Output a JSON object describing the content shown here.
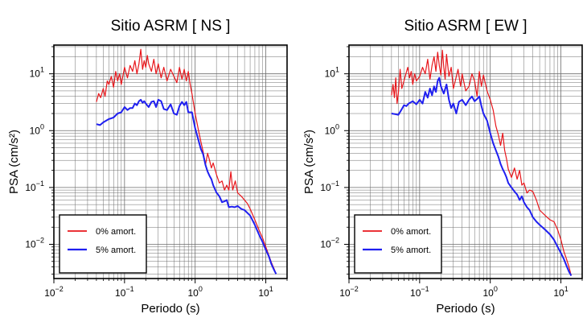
{
  "colors": {
    "undamped": "#e8161b",
    "damped": "#1f1ff0",
    "grid": "#6d6d6d",
    "frame": "#000000"
  },
  "chart_data": [
    {
      "type": "line",
      "title": "Sitio ASRM [ NS ]",
      "xlabel": "Periodo (s)",
      "ylabel": "PSA (cm/s²)",
      "xscale": "log",
      "yscale": "log",
      "xlim": [
        0.01,
        20
      ],
      "ylim": [
        0.0025,
        32
      ],
      "x_ticks": [
        {
          "v": 0.01,
          "base": "10",
          "exp": "−2"
        },
        {
          "v": 0.1,
          "base": "10",
          "exp": "−1"
        },
        {
          "v": 1,
          "base": "10",
          "exp": "0"
        },
        {
          "v": 10,
          "base": "10",
          "exp": "1"
        }
      ],
      "y_ticks": [
        {
          "v": 0.01,
          "base": "10",
          "exp": "−2"
        },
        {
          "v": 0.1,
          "base": "10",
          "exp": "−1"
        },
        {
          "v": 1,
          "base": "10",
          "exp": "0"
        },
        {
          "v": 10,
          "base": "10",
          "exp": "1"
        }
      ],
      "grid": true,
      "legend_position": "bottom-left",
      "series": [
        {
          "name": "0% amort.",
          "x": [
            0.04,
            0.043,
            0.046,
            0.05,
            0.053,
            0.057,
            0.06,
            0.065,
            0.07,
            0.075,
            0.08,
            0.085,
            0.09,
            0.1,
            0.11,
            0.12,
            0.13,
            0.14,
            0.15,
            0.16,
            0.17,
            0.18,
            0.19,
            0.2,
            0.21,
            0.22,
            0.24,
            0.26,
            0.28,
            0.3,
            0.33,
            0.36,
            0.4,
            0.45,
            0.5,
            0.55,
            0.6,
            0.65,
            0.7,
            0.75,
            0.8,
            0.85,
            0.9,
            1.0,
            1.1,
            1.2,
            1.3,
            1.4,
            1.5,
            1.6,
            1.7,
            1.8,
            2.0,
            2.2,
            2.4,
            2.6,
            2.8,
            3.0,
            3.2,
            3.4,
            3.7,
            4.0,
            4.5,
            5.0,
            5.5,
            6.0,
            7.0,
            8.0,
            9.0,
            10.0,
            11.0,
            12.0,
            13.0,
            14.0
          ],
          "y": [
            3.2,
            4.5,
            3.8,
            5.5,
            4.0,
            7.5,
            6.5,
            9.0,
            5.8,
            11,
            7.5,
            10,
            6.5,
            13,
            8.5,
            14,
            11,
            17,
            10,
            15,
            27,
            12,
            17,
            13,
            21,
            15,
            11,
            18,
            10,
            15,
            8.5,
            13,
            7.5,
            12,
            9.0,
            7.0,
            13,
            8.0,
            12,
            7.5,
            11,
            6.5,
            4.5,
            2.0,
            1.1,
            0.65,
            0.42,
            0.25,
            0.4,
            0.3,
            0.22,
            0.27,
            0.17,
            0.12,
            0.13,
            0.09,
            0.11,
            0.09,
            0.19,
            0.09,
            0.13,
            0.08,
            0.07,
            0.06,
            0.052,
            0.042,
            0.027,
            0.018,
            0.013,
            0.009,
            0.0065,
            0.0048,
            0.0038,
            0.003
          ]
        },
        {
          "name": "5% amort.",
          "x": [
            0.04,
            0.045,
            0.05,
            0.06,
            0.07,
            0.08,
            0.09,
            0.1,
            0.11,
            0.12,
            0.13,
            0.14,
            0.15,
            0.16,
            0.17,
            0.18,
            0.19,
            0.2,
            0.22,
            0.24,
            0.26,
            0.28,
            0.3,
            0.33,
            0.36,
            0.4,
            0.45,
            0.5,
            0.55,
            0.6,
            0.65,
            0.7,
            0.75,
            0.8,
            0.9,
            1.0,
            1.1,
            1.2,
            1.3,
            1.4,
            1.5,
            1.6,
            1.7,
            1.8,
            2.0,
            2.2,
            2.4,
            2.6,
            2.8,
            3.0,
            3.3,
            3.6,
            4.0,
            4.5,
            5.0,
            6.0,
            7.0,
            8.0,
            9.0,
            10.0,
            11.0,
            12.0,
            13.0,
            14.0
          ],
          "y": [
            1.3,
            1.25,
            1.4,
            1.6,
            1.7,
            2.0,
            2.1,
            2.6,
            2.3,
            2.5,
            2.5,
            3.0,
            2.8,
            3.3,
            3.5,
            3.1,
            3.3,
            3.0,
            2.6,
            3.2,
            3.3,
            2.6,
            3.5,
            3.3,
            2.4,
            2.3,
            2.9,
            2.0,
            1.9,
            2.7,
            3.2,
            2.8,
            3.2,
            2.1,
            2.1,
            1.1,
            0.72,
            0.48,
            0.38,
            0.25,
            0.19,
            0.16,
            0.14,
            0.11,
            0.082,
            0.07,
            0.055,
            0.057,
            0.06,
            0.045,
            0.046,
            0.045,
            0.047,
            0.042,
            0.04,
            0.032,
            0.022,
            0.015,
            0.011,
            0.008,
            0.0062,
            0.0045,
            0.0036,
            0.003
          ]
        }
      ]
    },
    {
      "type": "line",
      "title": "Sitio ASRM [ EW ]",
      "xlabel": "Periodo (s)",
      "ylabel": "PSA (cm/s²)",
      "xscale": "log",
      "yscale": "log",
      "xlim": [
        0.01,
        20
      ],
      "ylim": [
        0.0025,
        32
      ],
      "x_ticks": [
        {
          "v": 0.01,
          "base": "10",
          "exp": "−2"
        },
        {
          "v": 0.1,
          "base": "10",
          "exp": "−1"
        },
        {
          "v": 1,
          "base": "10",
          "exp": "0"
        },
        {
          "v": 10,
          "base": "10",
          "exp": "1"
        }
      ],
      "y_ticks": [
        {
          "v": 0.01,
          "base": "10",
          "exp": "−2"
        },
        {
          "v": 0.1,
          "base": "10",
          "exp": "−1"
        },
        {
          "v": 1,
          "base": "10",
          "exp": "0"
        },
        {
          "v": 10,
          "base": "10",
          "exp": "1"
        }
      ],
      "grid": true,
      "legend_position": "bottom-left",
      "series": [
        {
          "name": "0% amort.",
          "x": [
            0.04,
            0.042,
            0.044,
            0.046,
            0.048,
            0.05,
            0.053,
            0.056,
            0.06,
            0.064,
            0.068,
            0.072,
            0.076,
            0.08,
            0.085,
            0.09,
            0.1,
            0.11,
            0.12,
            0.13,
            0.14,
            0.15,
            0.16,
            0.17,
            0.18,
            0.19,
            0.2,
            0.21,
            0.22,
            0.23,
            0.24,
            0.26,
            0.28,
            0.3,
            0.32,
            0.35,
            0.38,
            0.4,
            0.45,
            0.5,
            0.55,
            0.6,
            0.65,
            0.7,
            0.75,
            0.8,
            0.9,
            1.0,
            1.1,
            1.2,
            1.3,
            1.4,
            1.5,
            1.6,
            1.7,
            1.8,
            2.0,
            2.2,
            2.4,
            2.6,
            2.8,
            3.0,
            3.3,
            3.6,
            4.0,
            4.5,
            5.0,
            6.0,
            7.0,
            8.0,
            9.0,
            10.0,
            11.0,
            12.0,
            13.0,
            14.0
          ],
          "y": [
            4.2,
            6.5,
            3.8,
            8.5,
            3.0,
            4.5,
            12,
            5.5,
            7.5,
            10,
            13,
            8.5,
            11,
            6.5,
            10,
            7.5,
            9.0,
            13,
            10,
            18,
            8.0,
            14,
            20,
            11,
            24,
            14,
            9.5,
            26,
            13,
            8.0,
            22,
            9.0,
            13,
            5.5,
            7.5,
            12,
            6.0,
            10,
            5.0,
            6.0,
            10,
            7.5,
            4.0,
            11,
            6.0,
            9.5,
            5.0,
            3.5,
            2.3,
            1.2,
            0.85,
            0.55,
            0.9,
            0.45,
            0.32,
            0.21,
            0.15,
            0.22,
            0.14,
            0.2,
            0.11,
            0.12,
            0.08,
            0.09,
            0.085,
            0.06,
            0.04,
            0.032,
            0.027,
            0.025,
            0.018,
            0.012,
            0.0075,
            0.0055,
            0.004,
            0.0028
          ]
        },
        {
          "name": "5% amort.",
          "x": [
            0.04,
            0.045,
            0.05,
            0.055,
            0.06,
            0.065,
            0.07,
            0.08,
            0.09,
            0.1,
            0.11,
            0.12,
            0.13,
            0.14,
            0.15,
            0.16,
            0.17,
            0.18,
            0.19,
            0.2,
            0.22,
            0.24,
            0.26,
            0.28,
            0.3,
            0.33,
            0.36,
            0.4,
            0.45,
            0.5,
            0.55,
            0.6,
            0.65,
            0.7,
            0.75,
            0.8,
            0.9,
            1.0,
            1.1,
            1.2,
            1.3,
            1.4,
            1.5,
            1.6,
            1.7,
            1.8,
            2.0,
            2.2,
            2.4,
            2.6,
            2.8,
            3.0,
            3.3,
            3.6,
            4.0,
            4.5,
            5.0,
            6.0,
            7.0,
            8.0,
            9.0,
            10.0,
            11.0,
            12.0,
            13.0,
            14.0
          ],
          "y": [
            2.0,
            1.95,
            1.9,
            2.3,
            2.8,
            2.7,
            3.0,
            3.3,
            2.9,
            3.5,
            3.0,
            4.8,
            3.8,
            5.5,
            4.2,
            6.0,
            4.8,
            7.5,
            8.5,
            6.0,
            4.5,
            6.5,
            3.5,
            2.5,
            3.0,
            2.0,
            3.2,
            3.5,
            2.8,
            3.5,
            4.0,
            3.3,
            3.6,
            4.0,
            2.7,
            2.0,
            1.5,
            0.9,
            0.6,
            0.45,
            0.35,
            0.26,
            0.21,
            0.18,
            0.15,
            0.12,
            0.1,
            0.085,
            0.075,
            0.06,
            0.07,
            0.055,
            0.045,
            0.04,
            0.03,
            0.025,
            0.022,
            0.018,
            0.015,
            0.012,
            0.009,
            0.007,
            0.0055,
            0.0042,
            0.0033,
            0.0028
          ]
        }
      ]
    }
  ]
}
